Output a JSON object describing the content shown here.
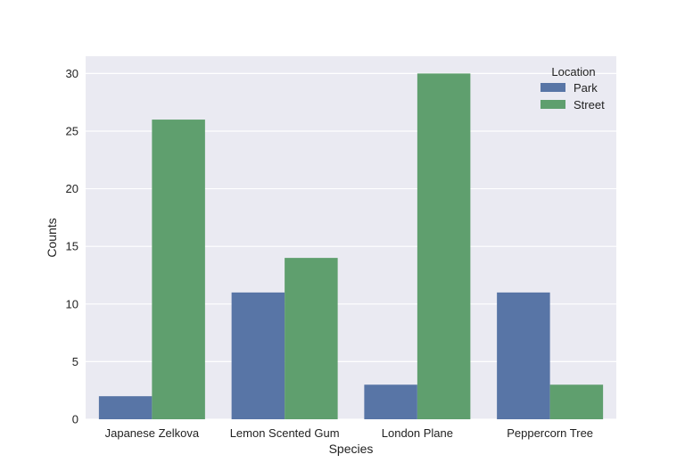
{
  "chart_data": {
    "type": "bar",
    "title": "",
    "xlabel": "Species",
    "ylabel": "Counts",
    "categories": [
      "Japanese Zelkova",
      "Lemon Scented Gum",
      "London Plane",
      "Peppercorn Tree"
    ],
    "series": [
      {
        "name": "Park",
        "values": [
          2,
          11,
          3,
          11
        ],
        "color": "#5875a6"
      },
      {
        "name": "Street",
        "values": [
          26,
          14,
          30,
          3
        ],
        "color": "#5f9f6e"
      }
    ],
    "ylim": [
      0,
      31.5
    ],
    "yticks": [
      0,
      5,
      10,
      15,
      20,
      25,
      30
    ],
    "grid": true,
    "legend": {
      "title": "Location",
      "placement": "top-right"
    },
    "colors": {
      "background": "#eaeaf2",
      "grid": "#ffffff"
    }
  }
}
